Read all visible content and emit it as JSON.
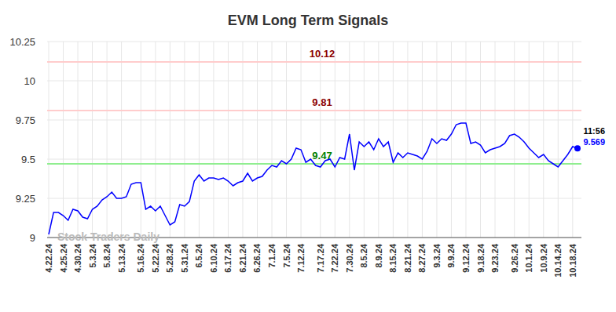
{
  "chart_data": {
    "type": "line",
    "title": "EVM Long Term Signals",
    "watermark": "Stock Traders Daily",
    "categories": [
      "4.22.24",
      null,
      null,
      "4.25.24",
      null,
      null,
      "4.30.24",
      null,
      null,
      "5.3.24",
      null,
      null,
      "5.8.24",
      null,
      null,
      "5.13.24",
      null,
      null,
      null,
      "5.16.24",
      null,
      null,
      "5.22.24",
      null,
      null,
      "5.28.24",
      null,
      null,
      "5.31.24",
      null,
      null,
      "6.5.24",
      null,
      null,
      "6.10.24",
      null,
      null,
      "6.17.24",
      null,
      null,
      "6.21.24",
      null,
      null,
      "6.26.24",
      null,
      null,
      "7.1.24",
      null,
      null,
      "7.5.24",
      null,
      null,
      "7.12.24",
      null,
      null,
      null,
      "7.17.24",
      null,
      null,
      "7.22.24",
      null,
      null,
      "7.30.24",
      null,
      null,
      "8.5.24",
      null,
      null,
      "8.9.24",
      null,
      null,
      "8.15.24",
      null,
      null,
      "8.21.24",
      null,
      null,
      "8.27.24",
      null,
      null,
      "9.3.24",
      null,
      null,
      "9.9.24",
      null,
      null,
      "9.12.24",
      null,
      null,
      "9.18.24",
      null,
      null,
      "9.23.24",
      null,
      null,
      null,
      "9.26.24",
      null,
      null,
      "10.1.24",
      null,
      null,
      "10.9.24",
      null,
      null,
      "10.14.24",
      null,
      null,
      "10.18.24",
      null
    ],
    "series": [
      {
        "name": "EVM",
        "color": "#0000ff",
        "values": [
          9.02,
          9.16,
          9.16,
          9.14,
          9.11,
          9.18,
          9.17,
          9.13,
          9.12,
          9.18,
          9.2,
          9.24,
          9.26,
          9.29,
          9.25,
          9.25,
          9.26,
          9.34,
          9.35,
          9.35,
          9.18,
          9.2,
          9.17,
          9.2,
          9.14,
          9.08,
          9.1,
          9.21,
          9.2,
          9.23,
          9.36,
          9.4,
          9.36,
          9.38,
          9.38,
          9.37,
          9.38,
          9.36,
          9.33,
          9.35,
          9.36,
          9.41,
          9.36,
          9.38,
          9.39,
          9.43,
          9.46,
          9.45,
          9.49,
          9.47,
          9.5,
          9.57,
          9.56,
          9.48,
          9.5,
          9.46,
          9.45,
          9.49,
          9.5,
          9.45,
          9.51,
          9.5,
          9.66,
          9.43,
          9.61,
          9.58,
          9.61,
          9.56,
          9.63,
          9.58,
          9.61,
          9.48,
          9.54,
          9.51,
          9.54,
          9.53,
          9.52,
          9.5,
          9.55,
          9.63,
          9.6,
          9.63,
          9.62,
          9.66,
          9.72,
          9.73,
          9.73,
          9.6,
          9.61,
          9.59,
          9.54,
          9.56,
          9.57,
          9.58,
          9.6,
          9.65,
          9.66,
          9.64,
          9.61,
          9.57,
          9.54,
          9.51,
          9.53,
          9.49,
          9.47,
          9.45,
          9.49,
          9.53,
          9.58,
          9.569
        ]
      }
    ],
    "hlines": [
      {
        "value": 10.12,
        "label": "10.12",
        "color": "#ffcccc",
        "label_color": "#8b0000"
      },
      {
        "value": 9.81,
        "label": "9.81",
        "color": "#ffcccc",
        "label_color": "#8b0000"
      },
      {
        "value": 9.47,
        "label": "9.47",
        "color": "#90ee90",
        "label_color": "#008000"
      }
    ],
    "last_label": {
      "time": "11:56",
      "label": "9.569"
    },
    "ylim": [
      9,
      10.25
    ],
    "yticks": [
      9,
      9.25,
      9.5,
      9.75,
      10,
      10.25
    ],
    "grid": true
  }
}
